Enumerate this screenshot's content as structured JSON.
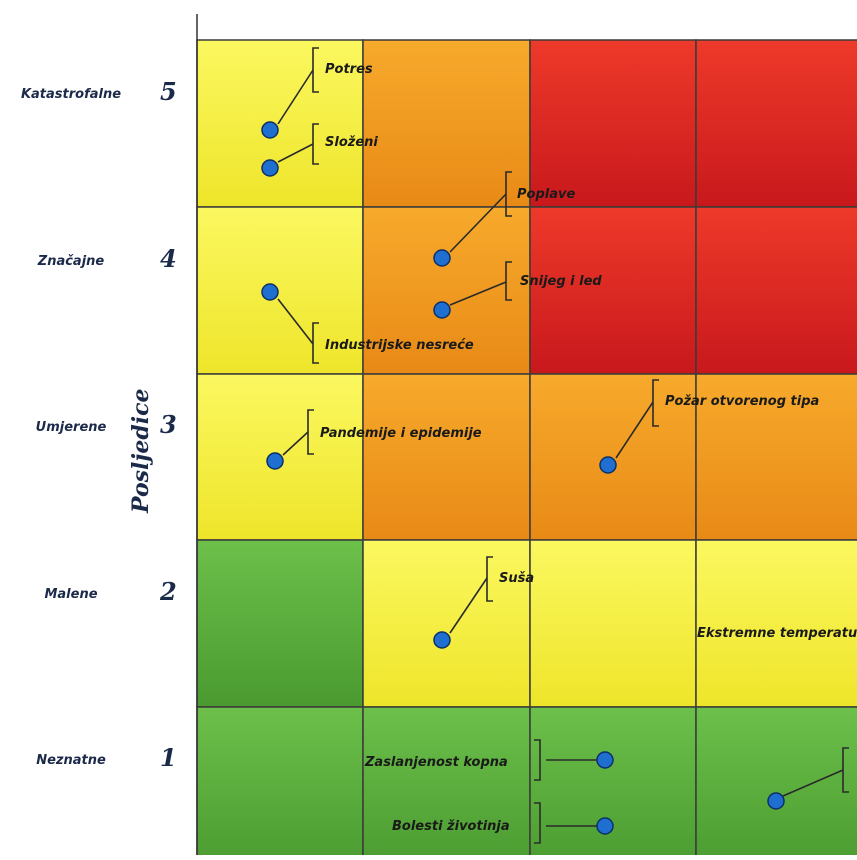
{
  "chart_data": {
    "type": "heatmap",
    "title": "",
    "ylabel": "Posljedice",
    "xlabel": "",
    "rows": [
      {
        "level": 5,
        "name": "Katastrofalne",
        "cells": [
          "yellow",
          "orange",
          "red",
          "red"
        ]
      },
      {
        "level": 4,
        "name": "Značajne",
        "cells": [
          "yellow",
          "orange",
          "red",
          "red"
        ]
      },
      {
        "level": 3,
        "name": "Umjerene",
        "cells": [
          "yellow",
          "orange",
          "orange",
          "orange"
        ]
      },
      {
        "level": 2,
        "name": "Malene",
        "cells": [
          "green",
          "yellow",
          "yellow",
          "yellow"
        ]
      },
      {
        "level": 1,
        "name": "Neznatne",
        "cells": [
          "green",
          "green",
          "green",
          "green"
        ]
      }
    ],
    "colors": {
      "green": "#5aa83c",
      "yellow": "#f6ee2e",
      "orange": "#f0961e",
      "red": "#d82020"
    },
    "events": [
      {
        "label": "Potres",
        "posljedice": 5,
        "column": 1
      },
      {
        "label": "Složeni",
        "posljedice": 5,
        "column": 1
      },
      {
        "label": "Poplave",
        "posljedice": 4,
        "column": 2
      },
      {
        "label": "Snijeg i led",
        "posljedice": 4,
        "column": 2
      },
      {
        "label": "Industrijske nesreće",
        "posljedice": 4,
        "column": 1
      },
      {
        "label": "Pandemije i epidemije",
        "posljedice": 3,
        "column": 1
      },
      {
        "label": "Požar otvorenog tipa",
        "posljedice": 3,
        "column": 3
      },
      {
        "label": "Suša",
        "posljedice": 2,
        "column": 2
      },
      {
        "label": "Ekstremne temperature",
        "posljedice": 2,
        "column": 4
      },
      {
        "label": "Zaslanjenost kopna",
        "posljedice": 1,
        "column": 3
      },
      {
        "label": "Bolesti životinja",
        "posljedice": 1,
        "column": 3
      },
      {
        "label": "",
        "posljedice": 1,
        "column": 4
      }
    ],
    "marker_color": "#1f6fd0"
  }
}
